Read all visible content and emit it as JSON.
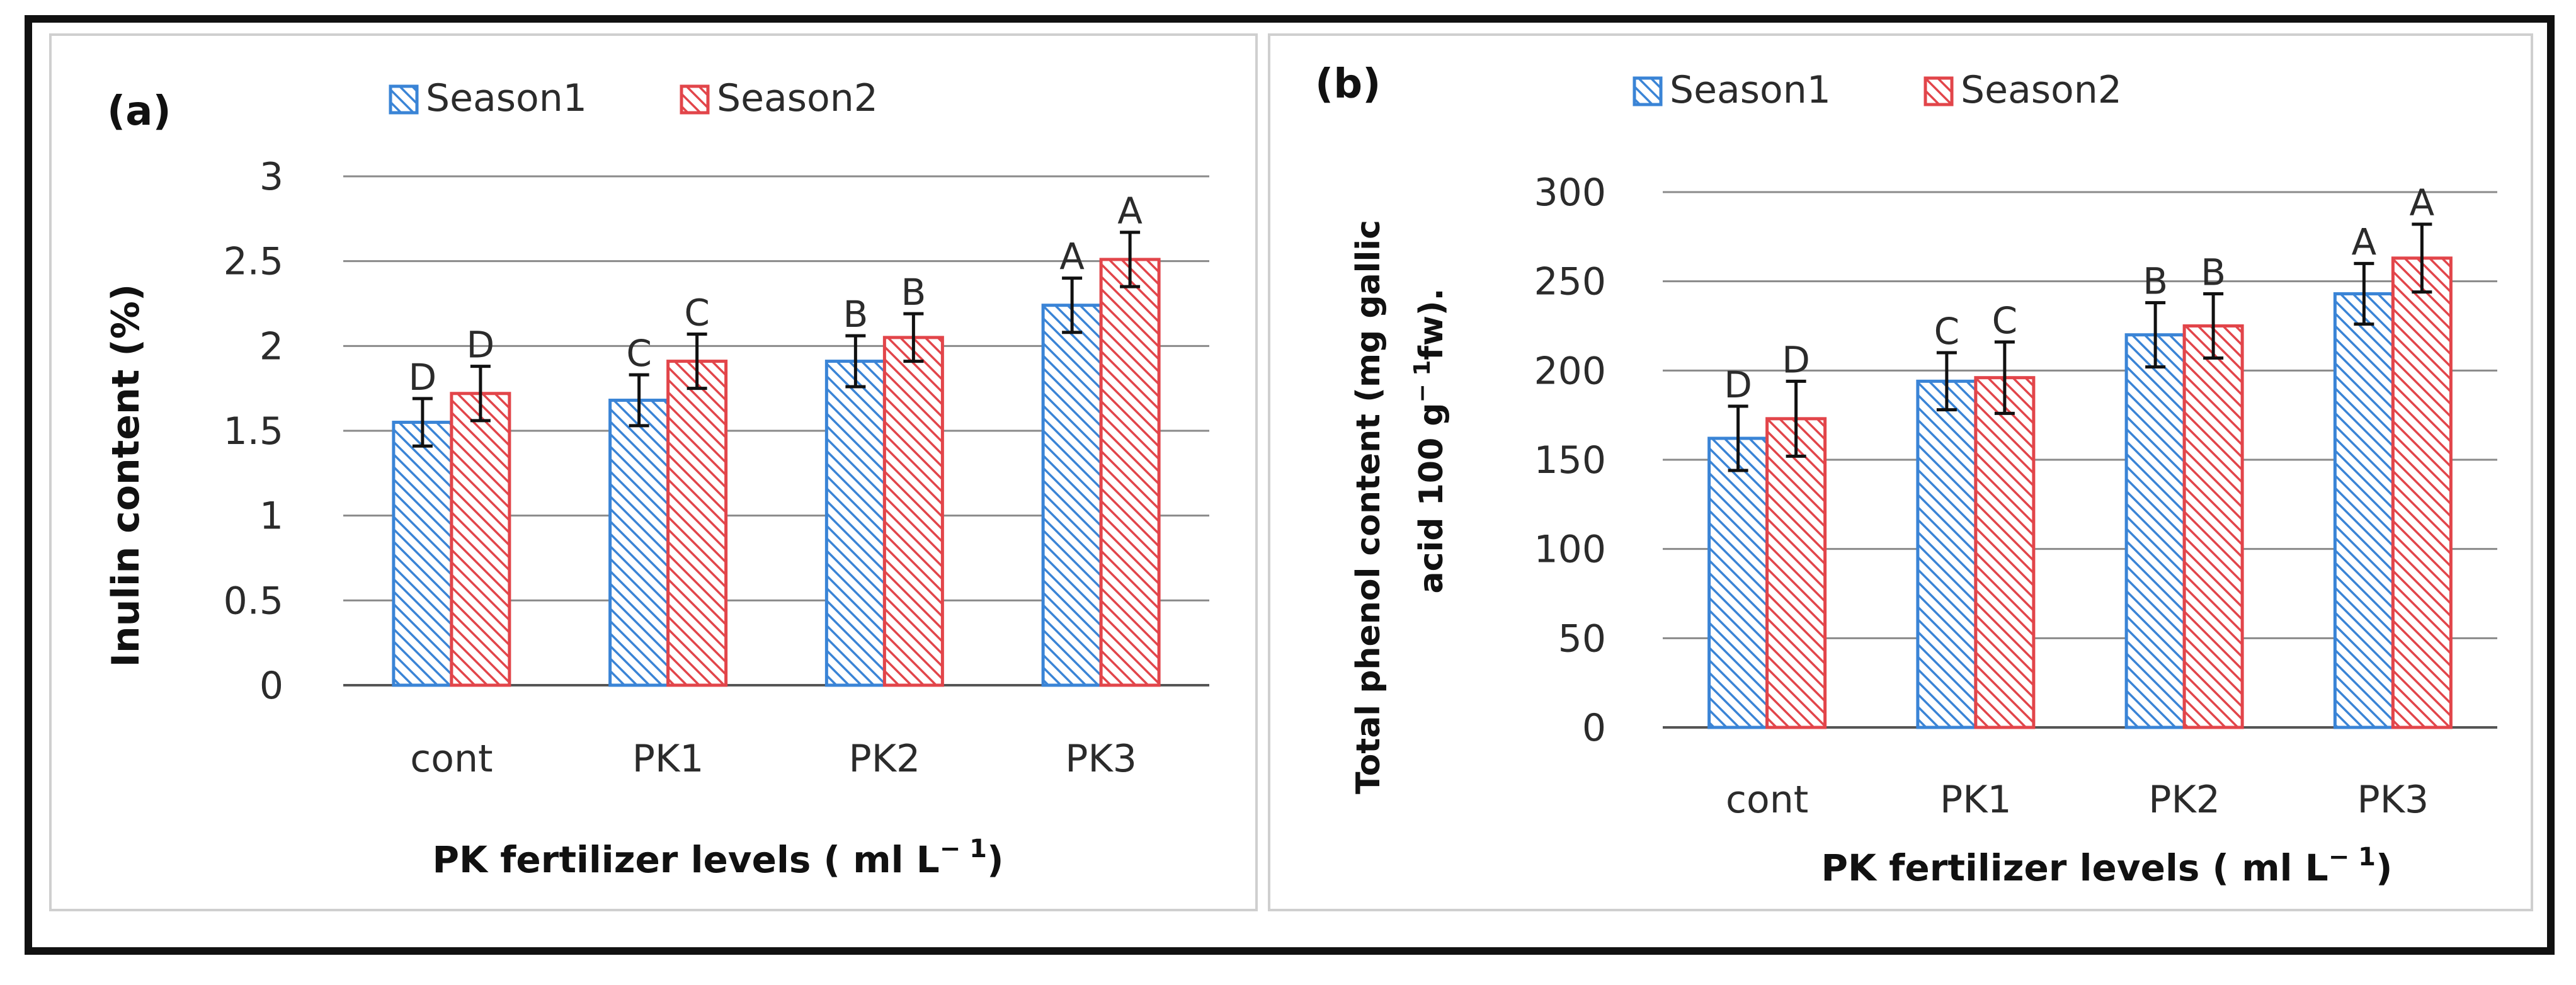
{
  "figure": {
    "colors": {
      "season1": "#3a84d6",
      "season2": "#e2454a",
      "grid": "#8a8a8a",
      "frame": "#111111",
      "error_bar": "#111111"
    }
  },
  "chart_data": [
    {
      "type": "bar",
      "panel_label": "(a)",
      "title": "",
      "xlabel": "PK fertilizer levels ( ml L",
      "xlabel_sup": "− 1",
      "xlabel_suffix": ")",
      "ylabel": "Inulin content (%)",
      "ylim": [
        0,
        3
      ],
      "yticks": [
        0,
        0.5,
        1,
        1.5,
        2,
        2.5,
        3
      ],
      "ytick_labels": [
        "0",
        "0.5",
        "1",
        "1.5",
        "2",
        "2.5",
        "3"
      ],
      "grid": true,
      "legend_position": "top-center",
      "categories": [
        "cont",
        "PK1",
        "PK2",
        "PK3"
      ],
      "series": [
        {
          "name": "Season1",
          "color": "#3a84d6",
          "values": [
            1.55,
            1.68,
            1.91,
            2.24
          ],
          "errors": [
            0.14,
            0.15,
            0.15,
            0.16
          ],
          "letters": [
            "D",
            "C",
            "B",
            "A"
          ]
        },
        {
          "name": "Season2",
          "color": "#e2454a",
          "values": [
            1.72,
            1.91,
            2.05,
            2.51
          ],
          "errors": [
            0.16,
            0.16,
            0.14,
            0.16
          ],
          "letters": [
            "D",
            "C",
            "B",
            "A"
          ]
        }
      ]
    },
    {
      "type": "bar",
      "panel_label": "(b)",
      "title": "",
      "xlabel": "PK fertilizer levels ( ml L",
      "xlabel_sup": "− 1",
      "xlabel_suffix": ")",
      "ylabel_line1": "Total phenol content (mg gallic",
      "ylabel_line2": "acid 100 g",
      "ylabel_line2_sup": "− 1",
      "ylabel_line2_suffix": "fw).",
      "ylim": [
        0,
        300
      ],
      "yticks": [
        0,
        50,
        100,
        150,
        200,
        250,
        300
      ],
      "ytick_labels": [
        "0",
        "50",
        "100",
        "150",
        "200",
        "250",
        "300"
      ],
      "grid": true,
      "legend_position": "top-center",
      "categories": [
        "cont",
        "PK1",
        "PK2",
        "PK3"
      ],
      "series": [
        {
          "name": "Season1",
          "color": "#3a84d6",
          "values": [
            162,
            194,
            220,
            243
          ],
          "errors": [
            18,
            16,
            18,
            17
          ],
          "letters": [
            "D",
            "C",
            "B",
            "A"
          ]
        },
        {
          "name": "Season2",
          "color": "#e2454a",
          "values": [
            173,
            196,
            225,
            263
          ],
          "errors": [
            21,
            20,
            18,
            19
          ],
          "letters": [
            "D",
            "C",
            "B",
            "A"
          ]
        }
      ]
    }
  ]
}
